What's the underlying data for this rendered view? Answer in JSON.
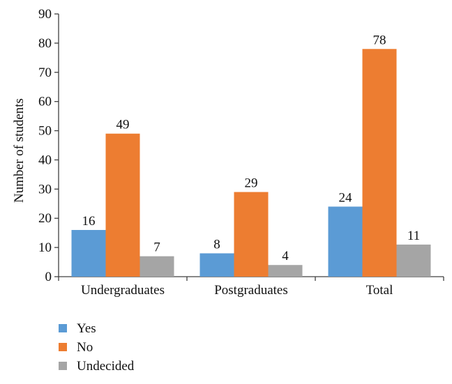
{
  "chart_data": {
    "type": "bar",
    "title": "",
    "xlabel": "",
    "ylabel": "Number of students",
    "ylim": [
      0,
      90
    ],
    "yticks": [
      0,
      10,
      20,
      30,
      40,
      50,
      60,
      70,
      80,
      90
    ],
    "grid": false,
    "legend_position": "bottom-left",
    "categories": [
      "Undergraduates",
      "Postgraduates",
      "Total"
    ],
    "series": [
      {
        "name": "Yes",
        "color": "#5B9BD5",
        "values": [
          16,
          8,
          24
        ]
      },
      {
        "name": "No",
        "color": "#ED7D31",
        "values": [
          49,
          29,
          78
        ]
      },
      {
        "name": "Undecided",
        "color": "#A5A5A5",
        "values": [
          7,
          4,
          11
        ]
      }
    ]
  }
}
